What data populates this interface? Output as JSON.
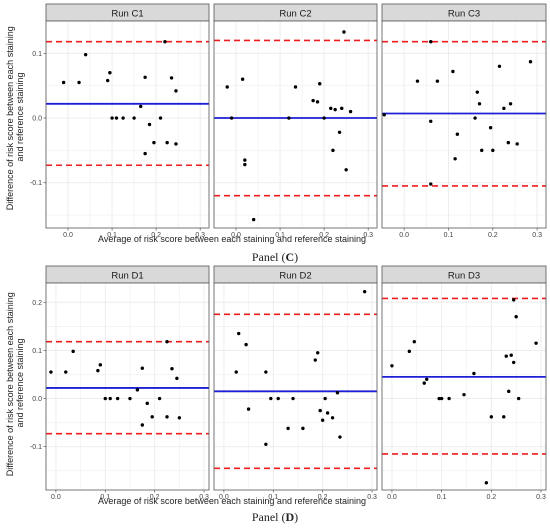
{
  "panel_captions": [
    {
      "prefix": "Panel (",
      "letter": "C",
      "suffix": ")"
    },
    {
      "prefix": "Panel (",
      "letter": "D",
      "suffix": ")"
    }
  ],
  "colors": {
    "points": "#000000",
    "mean_line": "#1f1fd6",
    "limit_lines": "#ee1c1c",
    "strip_bg": "#d9d9d9",
    "grid": "#ebebeb",
    "border": "#555555"
  },
  "chart_data": [
    {
      "type": "scatter",
      "facet_title": "Run C1",
      "xlabel": "Average of risk score between each staining and reference staining",
      "ylabel": "Difference of risk score between each staining and reference staining",
      "xlim": [
        -0.05,
        0.32
      ],
      "ylim": [
        -0.17,
        0.15
      ],
      "xticks": [
        0.0,
        0.1,
        0.2,
        0.3
      ],
      "yticks": [
        -0.1,
        0.0,
        0.1
      ],
      "mean": 0.022,
      "upper_limit": 0.118,
      "lower_limit": -0.073,
      "points": [
        [
          -0.01,
          0.055
        ],
        [
          0.025,
          0.055
        ],
        [
          0.04,
          0.098
        ],
        [
          0.09,
          0.058
        ],
        [
          0.095,
          0.07
        ],
        [
          0.1,
          0.0
        ],
        [
          0.11,
          0.0
        ],
        [
          0.125,
          0.0
        ],
        [
          0.15,
          0.0
        ],
        [
          0.165,
          0.018
        ],
        [
          0.175,
          0.063
        ],
        [
          0.175,
          -0.055
        ],
        [
          0.185,
          -0.01
        ],
        [
          0.195,
          -0.038
        ],
        [
          0.21,
          0.0
        ],
        [
          0.22,
          0.118
        ],
        [
          0.225,
          -0.038
        ],
        [
          0.235,
          0.062
        ],
        [
          0.245,
          0.042
        ],
        [
          0.245,
          -0.04
        ]
      ]
    },
    {
      "type": "scatter",
      "facet_title": "Run C2",
      "xlabel": "Average of risk score between each staining and reference staining",
      "ylabel": "Difference of risk score between each staining and reference staining",
      "xlim": [
        -0.05,
        0.32
      ],
      "ylim": [
        -0.17,
        0.15
      ],
      "xticks": [
        0.0,
        0.1,
        0.2,
        0.3
      ],
      "yticks": [
        -0.1,
        0.0,
        0.1
      ],
      "mean": 0.0,
      "upper_limit": 0.12,
      "lower_limit": -0.12,
      "points": [
        [
          -0.02,
          0.048
        ],
        [
          -0.01,
          0.0
        ],
        [
          0.015,
          0.06
        ],
        [
          0.02,
          -0.065
        ],
        [
          0.02,
          -0.072
        ],
        [
          0.04,
          -0.157
        ],
        [
          0.12,
          0.0
        ],
        [
          0.135,
          0.048
        ],
        [
          0.175,
          0.027
        ],
        [
          0.185,
          0.025
        ],
        [
          0.19,
          0.053
        ],
        [
          0.2,
          0.0
        ],
        [
          0.215,
          0.015
        ],
        [
          0.22,
          -0.05
        ],
        [
          0.225,
          0.013
        ],
        [
          0.235,
          -0.022
        ],
        [
          0.24,
          0.015
        ],
        [
          0.245,
          0.133
        ],
        [
          0.25,
          -0.08
        ],
        [
          0.26,
          0.01
        ]
      ]
    },
    {
      "type": "scatter",
      "facet_title": "Run C3",
      "xlabel": "Average of risk score between each staining and reference staining",
      "ylabel": "Difference of risk score between each staining and reference staining",
      "xlim": [
        -0.05,
        0.32
      ],
      "ylim": [
        -0.17,
        0.15
      ],
      "xticks": [
        0.0,
        0.1,
        0.2,
        0.3
      ],
      "yticks": [
        -0.1,
        0.0,
        0.1
      ],
      "mean": 0.007,
      "upper_limit": 0.118,
      "lower_limit": -0.105,
      "points": [
        [
          -0.045,
          0.005
        ],
        [
          0.03,
          0.057
        ],
        [
          0.06,
          0.118
        ],
        [
          0.06,
          -0.005
        ],
        [
          0.06,
          -0.102
        ],
        [
          0.075,
          0.057
        ],
        [
          0.11,
          0.072
        ],
        [
          0.115,
          -0.063
        ],
        [
          0.12,
          -0.025
        ],
        [
          0.16,
          0.0
        ],
        [
          0.165,
          0.04
        ],
        [
          0.17,
          0.022
        ],
        [
          0.175,
          -0.05
        ],
        [
          0.195,
          -0.015
        ],
        [
          0.2,
          -0.05
        ],
        [
          0.215,
          0.08
        ],
        [
          0.225,
          0.015
        ],
        [
          0.235,
          -0.038
        ],
        [
          0.24,
          0.022
        ],
        [
          0.255,
          -0.04
        ],
        [
          0.285,
          0.087
        ]
      ]
    },
    {
      "type": "scatter",
      "facet_title": "Run D1",
      "xlabel": "Average of risk score between each staining and reference staining",
      "ylabel": "Difference of risk score between each staining and reference staining",
      "xlim": [
        -0.02,
        0.31
      ],
      "ylim": [
        -0.19,
        0.24
      ],
      "xticks": [
        0.0,
        0.1,
        0.2,
        0.3
      ],
      "yticks": [
        -0.1,
        0.0,
        0.1,
        0.2
      ],
      "mean": 0.022,
      "upper_limit": 0.118,
      "lower_limit": -0.073,
      "points": [
        [
          -0.01,
          0.055
        ],
        [
          0.02,
          0.055
        ],
        [
          0.035,
          0.098
        ],
        [
          0.085,
          0.058
        ],
        [
          0.09,
          0.07
        ],
        [
          0.1,
          0.0
        ],
        [
          0.11,
          0.0
        ],
        [
          0.125,
          0.0
        ],
        [
          0.15,
          0.0
        ],
        [
          0.165,
          0.018
        ],
        [
          0.175,
          0.063
        ],
        [
          0.175,
          -0.055
        ],
        [
          0.185,
          -0.01
        ],
        [
          0.195,
          -0.038
        ],
        [
          0.21,
          0.0
        ],
        [
          0.225,
          0.118
        ],
        [
          0.225,
          -0.038
        ],
        [
          0.235,
          0.062
        ],
        [
          0.245,
          0.042
        ],
        [
          0.25,
          -0.04
        ]
      ]
    },
    {
      "type": "scatter",
      "facet_title": "Run D2",
      "xlabel": "Average of risk score between each staining and reference staining",
      "ylabel": "Difference of risk score between each staining and reference staining",
      "xlim": [
        -0.02,
        0.31
      ],
      "ylim": [
        -0.19,
        0.24
      ],
      "xticks": [
        0.0,
        0.1,
        0.2,
        0.3
      ],
      "yticks": [
        -0.1,
        0.0,
        0.1,
        0.2
      ],
      "mean": 0.015,
      "upper_limit": 0.175,
      "lower_limit": -0.145,
      "points": [
        [
          0.025,
          0.055
        ],
        [
          0.03,
          0.135
        ],
        [
          0.045,
          0.112
        ],
        [
          0.05,
          -0.022
        ],
        [
          0.085,
          0.055
        ],
        [
          0.085,
          -0.095
        ],
        [
          0.095,
          0.0
        ],
        [
          0.11,
          0.0
        ],
        [
          0.13,
          -0.062
        ],
        [
          0.14,
          0.0
        ],
        [
          0.16,
          -0.062
        ],
        [
          0.185,
          0.08
        ],
        [
          0.19,
          0.095
        ],
        [
          0.195,
          -0.025
        ],
        [
          0.2,
          -0.045
        ],
        [
          0.205,
          0.0
        ],
        [
          0.21,
          -0.03
        ],
        [
          0.22,
          -0.04
        ],
        [
          0.23,
          0.012
        ],
        [
          0.235,
          -0.08
        ],
        [
          0.285,
          0.222
        ]
      ]
    },
    {
      "type": "scatter",
      "facet_title": "Run D3",
      "xlabel": "Average of risk score between each staining and reference staining",
      "ylabel": "Difference of risk score between each staining and reference staining",
      "xlim": [
        -0.02,
        0.31
      ],
      "ylim": [
        -0.19,
        0.24
      ],
      "xticks": [
        0.0,
        0.1,
        0.2,
        0.3
      ],
      "yticks": [
        -0.1,
        0.0,
        0.1,
        0.2
      ],
      "mean": 0.045,
      "upper_limit": 0.208,
      "lower_limit": -0.115,
      "points": [
        [
          0.0,
          0.068
        ],
        [
          0.035,
          0.098
        ],
        [
          0.045,
          0.118
        ],
        [
          0.065,
          0.032
        ],
        [
          0.07,
          0.04
        ],
        [
          0.095,
          0.0
        ],
        [
          0.1,
          0.0
        ],
        [
          0.115,
          0.0
        ],
        [
          0.145,
          0.008
        ],
        [
          0.165,
          0.052
        ],
        [
          0.19,
          -0.175
        ],
        [
          0.2,
          -0.038
        ],
        [
          0.225,
          -0.038
        ],
        [
          0.23,
          0.088
        ],
        [
          0.235,
          0.015
        ],
        [
          0.24,
          0.09
        ],
        [
          0.245,
          0.075
        ],
        [
          0.245,
          0.205
        ],
        [
          0.25,
          0.17
        ],
        [
          0.255,
          0.0
        ],
        [
          0.29,
          0.115
        ]
      ]
    }
  ]
}
